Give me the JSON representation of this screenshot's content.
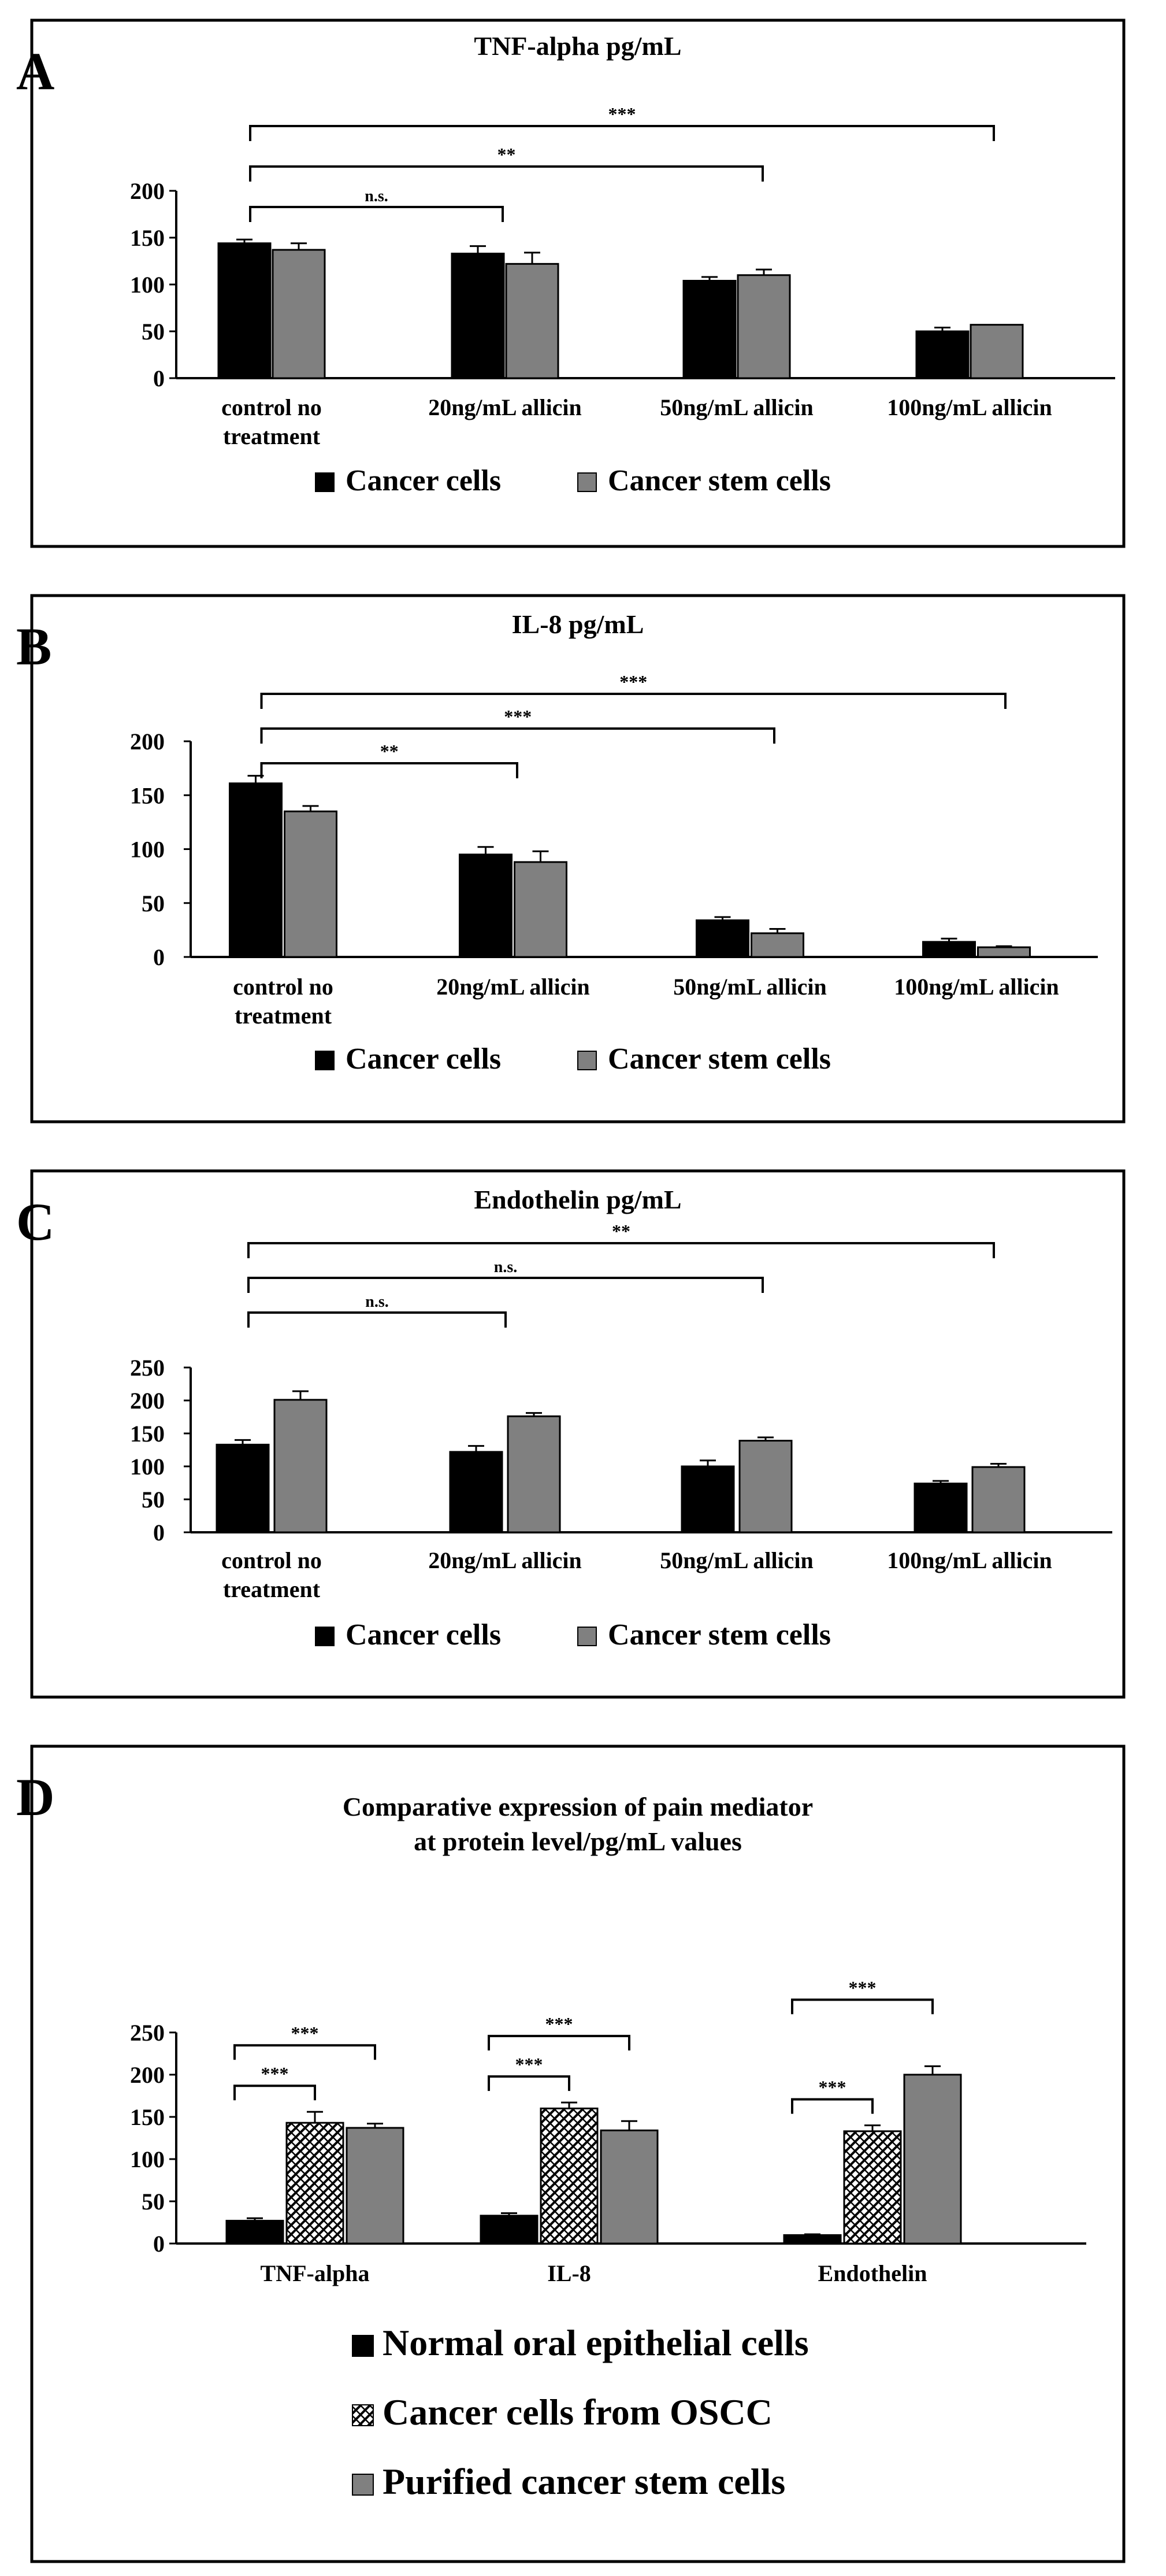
{
  "colors": {
    "cancer": "#000000",
    "stem": "#808080",
    "normal": "#000000",
    "purified": "#808080",
    "frame": "#000000"
  },
  "panel_labels": [
    "A",
    "B",
    "C",
    "D"
  ],
  "legend_top": [
    "Cancer cells",
    "Cancer stem cells"
  ],
  "chart_data": [
    {
      "type": "bar",
      "title": "TNF-alpha pg/mL",
      "categories": [
        "control no treatment",
        "20ng/mL allicin",
        "50ng/mL allicin",
        "100ng/mL allicin"
      ],
      "category_lines": [
        [
          "control no",
          "treatment"
        ],
        [
          "20ng/mL allicin"
        ],
        [
          "50ng/mL allicin"
        ],
        [
          "100ng/mL allicin"
        ]
      ],
      "ylim": [
        0,
        200
      ],
      "yticks": [
        "0",
        "50",
        "100",
        "150",
        "200"
      ],
      "ytick_values": [
        0,
        50,
        100,
        150,
        200
      ],
      "series": [
        {
          "name": "Cancer cells",
          "values": [
            144,
            133,
            104,
            50
          ],
          "errors": [
            4,
            8,
            4,
            4
          ]
        },
        {
          "name": "Cancer stem cells",
          "values": [
            137,
            122,
            110,
            57
          ],
          "errors": [
            7,
            12,
            6,
            0
          ]
        }
      ],
      "annotations": [
        {
          "from": 0,
          "to": 1,
          "label": "n.s."
        },
        {
          "from": 0,
          "to": 2,
          "label": "**"
        },
        {
          "from": 0,
          "to": 3,
          "label": "***"
        }
      ]
    },
    {
      "type": "bar",
      "title": "IL-8 pg/mL",
      "categories": [
        "control no treatment",
        "20ng/mL allicin",
        "50ng/mL allicin",
        "100ng/mL allicin"
      ],
      "category_lines": [
        [
          "control no",
          "treatment"
        ],
        [
          "20ng/mL allicin"
        ],
        [
          "50ng/mL allicin"
        ],
        [
          "100ng/mL allicin"
        ]
      ],
      "ylim": [
        0,
        200
      ],
      "yticks": [
        "0",
        "50",
        "100",
        "150",
        "200"
      ],
      "ytick_values": [
        0,
        50,
        100,
        150,
        200
      ],
      "series": [
        {
          "name": "Cancer cells",
          "values": [
            161,
            95,
            34,
            14
          ],
          "errors": [
            7,
            7,
            3,
            3
          ]
        },
        {
          "name": "Cancer stem cells",
          "values": [
            135,
            88,
            22,
            9
          ],
          "errors": [
            5,
            10,
            4,
            1
          ]
        }
      ],
      "annotations": [
        {
          "from": 0,
          "to": 1,
          "label": "**"
        },
        {
          "from": 0,
          "to": 2,
          "label": "***"
        },
        {
          "from": 0,
          "to": 3,
          "label": "***"
        }
      ]
    },
    {
      "type": "bar",
      "title": "Endothelin pg/mL",
      "categories": [
        "control no treatment",
        "20ng/mL allicin",
        "50ng/mL allicin",
        "100ng/mL allicin"
      ],
      "category_lines": [
        [
          "control no",
          "treatment"
        ],
        [
          "20ng/mL allicin"
        ],
        [
          "50ng/mL allicin"
        ],
        [
          "100ng/mL allicin"
        ]
      ],
      "ylim": [
        0,
        250
      ],
      "yticks": [
        "0",
        "50",
        "100",
        "150",
        "200",
        "250"
      ],
      "ytick_values": [
        0,
        50,
        100,
        150,
        200,
        250
      ],
      "series": [
        {
          "name": "Cancer cells",
          "values": [
            133,
            122,
            100,
            74
          ],
          "errors": [
            7,
            9,
            9,
            4
          ]
        },
        {
          "name": "Cancer stem cells",
          "values": [
            201,
            176,
            139,
            99
          ],
          "errors": [
            13,
            5,
            5,
            5
          ]
        }
      ],
      "annotations": [
        {
          "from": 0,
          "to": 1,
          "label": "n.s."
        },
        {
          "from": 0,
          "to": 2,
          "label": "n.s."
        },
        {
          "from": 0,
          "to": 3,
          "label": "**"
        }
      ]
    },
    {
      "type": "bar",
      "title_lines": [
        "Comparative expression of pain mediator",
        "at protein level/pg/mL values"
      ],
      "categories": [
        "TNF-alpha",
        "IL-8",
        "Endothelin"
      ],
      "ylim": [
        0,
        250
      ],
      "yticks": [
        "0",
        "50",
        "100",
        "150",
        "200",
        "250"
      ],
      "ytick_values": [
        0,
        50,
        100,
        150,
        200,
        250
      ],
      "series": [
        {
          "name": "Normal oral epithelial cells",
          "values": [
            27,
            33,
            10
          ],
          "errors": [
            3,
            3,
            1
          ]
        },
        {
          "name": "Cancer cells from OSCC",
          "values": [
            143,
            160,
            133
          ],
          "errors": [
            13,
            7,
            7
          ]
        },
        {
          "name": "Purified cancer stem cells",
          "values": [
            137,
            134,
            200
          ],
          "errors": [
            5,
            11,
            10
          ]
        }
      ],
      "annotations": [
        {
          "group": 0,
          "from": 0,
          "to": 1,
          "label": "***"
        },
        {
          "group": 0,
          "from": 0,
          "to": 2,
          "label": "***"
        },
        {
          "group": 1,
          "from": 0,
          "to": 1,
          "label": "***"
        },
        {
          "group": 1,
          "from": 0,
          "to": 2,
          "label": "***"
        },
        {
          "group": 2,
          "from": 0,
          "to": 1,
          "label": "***"
        },
        {
          "group": 2,
          "from": 0,
          "to": 2,
          "label": "***"
        }
      ]
    }
  ]
}
